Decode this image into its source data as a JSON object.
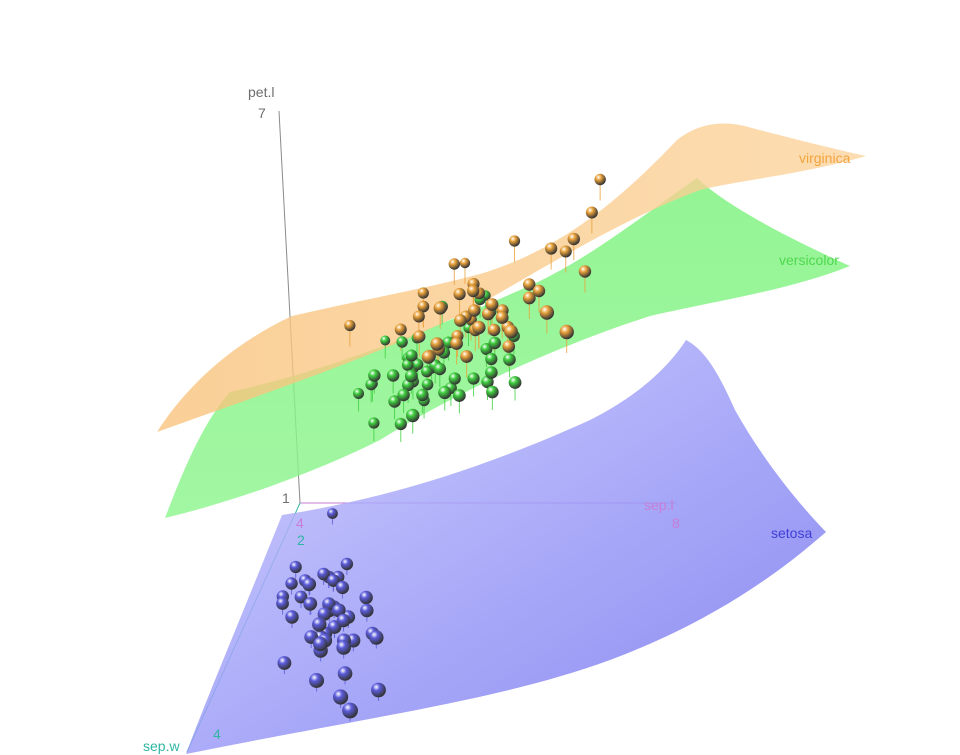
{
  "chart_data": {
    "type": "scatter3d",
    "title": "",
    "axes": {
      "x": {
        "label": "sep.l",
        "ticks": [
          "4",
          "8"
        ],
        "range": [
          4,
          8
        ]
      },
      "y": {
        "label": "sep.w",
        "ticks": [
          "2",
          "4"
        ],
        "range": [
          2,
          4.5
        ]
      },
      "z": {
        "label": "pet.l",
        "ticks": [
          "1",
          "7"
        ],
        "range": [
          1,
          7
        ]
      }
    },
    "surfaces": [
      {
        "name": "setosa",
        "color": "#7b7bf5"
      },
      {
        "name": "versicolor",
        "color": "#7df57d"
      },
      {
        "name": "virginica",
        "color": "#f9c06b"
      }
    ],
    "series": [
      {
        "name": "setosa",
        "color": "#5b5bdc",
        "points": [
          [
            5.1,
            3.5,
            1.4
          ],
          [
            4.9,
            3.0,
            1.4
          ],
          [
            4.7,
            3.2,
            1.3
          ],
          [
            4.6,
            3.1,
            1.5
          ],
          [
            5.0,
            3.6,
            1.4
          ],
          [
            5.4,
            3.9,
            1.7
          ],
          [
            4.6,
            3.4,
            1.4
          ],
          [
            5.0,
            3.4,
            1.5
          ],
          [
            4.4,
            2.9,
            1.4
          ],
          [
            4.9,
            3.1,
            1.5
          ],
          [
            5.4,
            3.7,
            1.5
          ],
          [
            4.8,
            3.4,
            1.6
          ],
          [
            4.8,
            3.0,
            1.4
          ],
          [
            4.3,
            3.0,
            1.1
          ],
          [
            5.8,
            4.0,
            1.2
          ],
          [
            5.7,
            4.4,
            1.5
          ],
          [
            5.4,
            3.9,
            1.3
          ],
          [
            5.1,
            3.5,
            1.4
          ],
          [
            5.7,
            3.8,
            1.7
          ],
          [
            5.1,
            3.8,
            1.5
          ],
          [
            5.4,
            3.4,
            1.7
          ],
          [
            5.1,
            3.7,
            1.5
          ],
          [
            4.6,
            3.6,
            1.0
          ],
          [
            5.1,
            3.3,
            1.7
          ],
          [
            4.8,
            3.4,
            1.9
          ],
          [
            5.0,
            3.0,
            1.6
          ],
          [
            5.0,
            3.4,
            1.6
          ],
          [
            5.2,
            3.5,
            1.5
          ],
          [
            5.2,
            3.4,
            1.4
          ],
          [
            4.7,
            3.2,
            1.6
          ],
          [
            4.8,
            3.1,
            1.6
          ],
          [
            5.4,
            3.4,
            1.5
          ],
          [
            5.2,
            4.1,
            1.5
          ],
          [
            5.5,
            4.2,
            1.4
          ],
          [
            4.9,
            3.1,
            1.5
          ],
          [
            5.0,
            3.2,
            1.2
          ],
          [
            5.5,
            3.5,
            1.3
          ],
          [
            4.9,
            3.6,
            1.4
          ],
          [
            4.4,
            3.0,
            1.3
          ],
          [
            5.1,
            3.4,
            1.5
          ],
          [
            5.0,
            3.5,
            1.3
          ],
          [
            4.5,
            2.3,
            1.3
          ],
          [
            4.4,
            3.2,
            1.3
          ],
          [
            5.0,
            3.5,
            1.6
          ],
          [
            5.1,
            3.8,
            1.9
          ],
          [
            4.8,
            3.0,
            1.4
          ],
          [
            5.1,
            3.8,
            1.6
          ],
          [
            4.6,
            3.2,
            1.4
          ],
          [
            5.3,
            3.7,
            1.5
          ],
          [
            5.0,
            3.3,
            1.4
          ]
        ]
      },
      {
        "name": "versicolor",
        "color": "#3fcf3f",
        "points": [
          [
            7.0,
            3.2,
            4.7
          ],
          [
            6.4,
            3.2,
            4.5
          ],
          [
            6.9,
            3.1,
            4.9
          ],
          [
            5.5,
            2.3,
            4.0
          ],
          [
            6.5,
            2.8,
            4.6
          ],
          [
            5.7,
            2.8,
            4.5
          ],
          [
            6.3,
            3.3,
            4.7
          ],
          [
            4.9,
            2.4,
            3.3
          ],
          [
            6.6,
            2.9,
            4.6
          ],
          [
            5.2,
            2.7,
            3.9
          ],
          [
            5.0,
            2.0,
            3.5
          ],
          [
            5.9,
            3.0,
            4.2
          ],
          [
            6.0,
            2.2,
            4.0
          ],
          [
            6.1,
            2.9,
            4.7
          ],
          [
            5.6,
            2.9,
            3.6
          ],
          [
            6.7,
            3.1,
            4.4
          ],
          [
            5.6,
            3.0,
            4.5
          ],
          [
            5.8,
            2.7,
            4.1
          ],
          [
            6.2,
            2.2,
            4.5
          ],
          [
            5.6,
            2.5,
            3.9
          ],
          [
            5.9,
            3.2,
            4.8
          ],
          [
            6.1,
            2.8,
            4.0
          ],
          [
            6.3,
            2.5,
            4.9
          ],
          [
            6.1,
            2.8,
            4.7
          ],
          [
            6.4,
            2.9,
            4.3
          ],
          [
            6.6,
            3.0,
            4.4
          ],
          [
            6.8,
            2.8,
            4.8
          ],
          [
            6.7,
            3.0,
            5.0
          ],
          [
            6.0,
            2.9,
            4.5
          ],
          [
            5.7,
            2.6,
            3.5
          ],
          [
            5.5,
            2.4,
            3.8
          ],
          [
            5.5,
            2.4,
            3.7
          ],
          [
            5.8,
            2.7,
            3.9
          ],
          [
            6.0,
            2.7,
            5.1
          ],
          [
            5.4,
            3.0,
            4.5
          ],
          [
            6.0,
            3.4,
            4.5
          ],
          [
            6.7,
            3.1,
            4.7
          ],
          [
            6.3,
            2.3,
            4.4
          ],
          [
            5.6,
            3.0,
            4.1
          ],
          [
            5.5,
            2.5,
            4.0
          ],
          [
            5.5,
            2.6,
            4.4
          ],
          [
            6.1,
            3.0,
            4.6
          ],
          [
            5.8,
            2.6,
            4.0
          ],
          [
            5.0,
            2.3,
            3.3
          ],
          [
            5.6,
            2.7,
            4.2
          ],
          [
            5.7,
            3.0,
            4.2
          ],
          [
            5.7,
            2.9,
            4.2
          ],
          [
            6.2,
            2.9,
            4.3
          ],
          [
            5.1,
            2.5,
            3.0
          ],
          [
            5.7,
            2.8,
            4.1
          ]
        ]
      },
      {
        "name": "virginica",
        "color": "#e9a23b",
        "points": [
          [
            6.3,
            3.3,
            6.0
          ],
          [
            5.8,
            2.7,
            5.1
          ],
          [
            7.1,
            3.0,
            5.9
          ],
          [
            6.3,
            2.9,
            5.6
          ],
          [
            6.5,
            3.0,
            5.8
          ],
          [
            7.6,
            3.0,
            6.6
          ],
          [
            4.9,
            2.5,
            4.5
          ],
          [
            7.3,
            2.9,
            6.3
          ],
          [
            6.7,
            2.5,
            5.8
          ],
          [
            7.2,
            3.6,
            6.1
          ],
          [
            6.5,
            3.2,
            5.1
          ],
          [
            6.4,
            2.7,
            5.3
          ],
          [
            6.8,
            3.0,
            5.5
          ],
          [
            5.7,
            2.5,
            5.0
          ],
          [
            5.8,
            2.8,
            5.1
          ],
          [
            6.4,
            3.2,
            5.3
          ],
          [
            6.5,
            3.0,
            5.5
          ],
          [
            7.7,
            3.8,
            6.7
          ],
          [
            7.7,
            2.6,
            6.9
          ],
          [
            6.0,
            2.2,
            5.0
          ],
          [
            6.9,
            3.2,
            5.7
          ],
          [
            5.6,
            2.8,
            4.9
          ],
          [
            7.7,
            2.8,
            6.7
          ],
          [
            6.3,
            2.7,
            4.9
          ],
          [
            6.7,
            3.3,
            5.7
          ],
          [
            7.2,
            3.2,
            6.0
          ],
          [
            6.2,
            2.8,
            4.8
          ],
          [
            6.1,
            3.0,
            4.9
          ],
          [
            6.4,
            2.8,
            5.6
          ],
          [
            7.2,
            3.0,
            5.8
          ],
          [
            7.4,
            2.8,
            6.1
          ],
          [
            7.9,
            3.8,
            6.4
          ],
          [
            6.4,
            2.8,
            5.6
          ],
          [
            6.3,
            2.8,
            5.1
          ],
          [
            6.1,
            2.6,
            5.6
          ],
          [
            7.7,
            3.0,
            6.1
          ],
          [
            6.3,
            3.4,
            5.6
          ],
          [
            6.4,
            3.1,
            5.5
          ],
          [
            6.0,
            3.0,
            4.8
          ],
          [
            6.9,
            3.1,
            5.4
          ],
          [
            6.7,
            3.1,
            5.6
          ],
          [
            6.9,
            3.1,
            5.1
          ],
          [
            5.8,
            2.7,
            5.1
          ],
          [
            6.8,
            3.2,
            5.9
          ],
          [
            6.7,
            3.3,
            5.7
          ],
          [
            6.7,
            3.0,
            5.2
          ],
          [
            6.3,
            2.5,
            5.0
          ],
          [
            6.5,
            3.0,
            5.2
          ],
          [
            6.2,
            3.4,
            5.4
          ],
          [
            5.9,
            3.0,
            5.1
          ]
        ]
      }
    ]
  }
}
